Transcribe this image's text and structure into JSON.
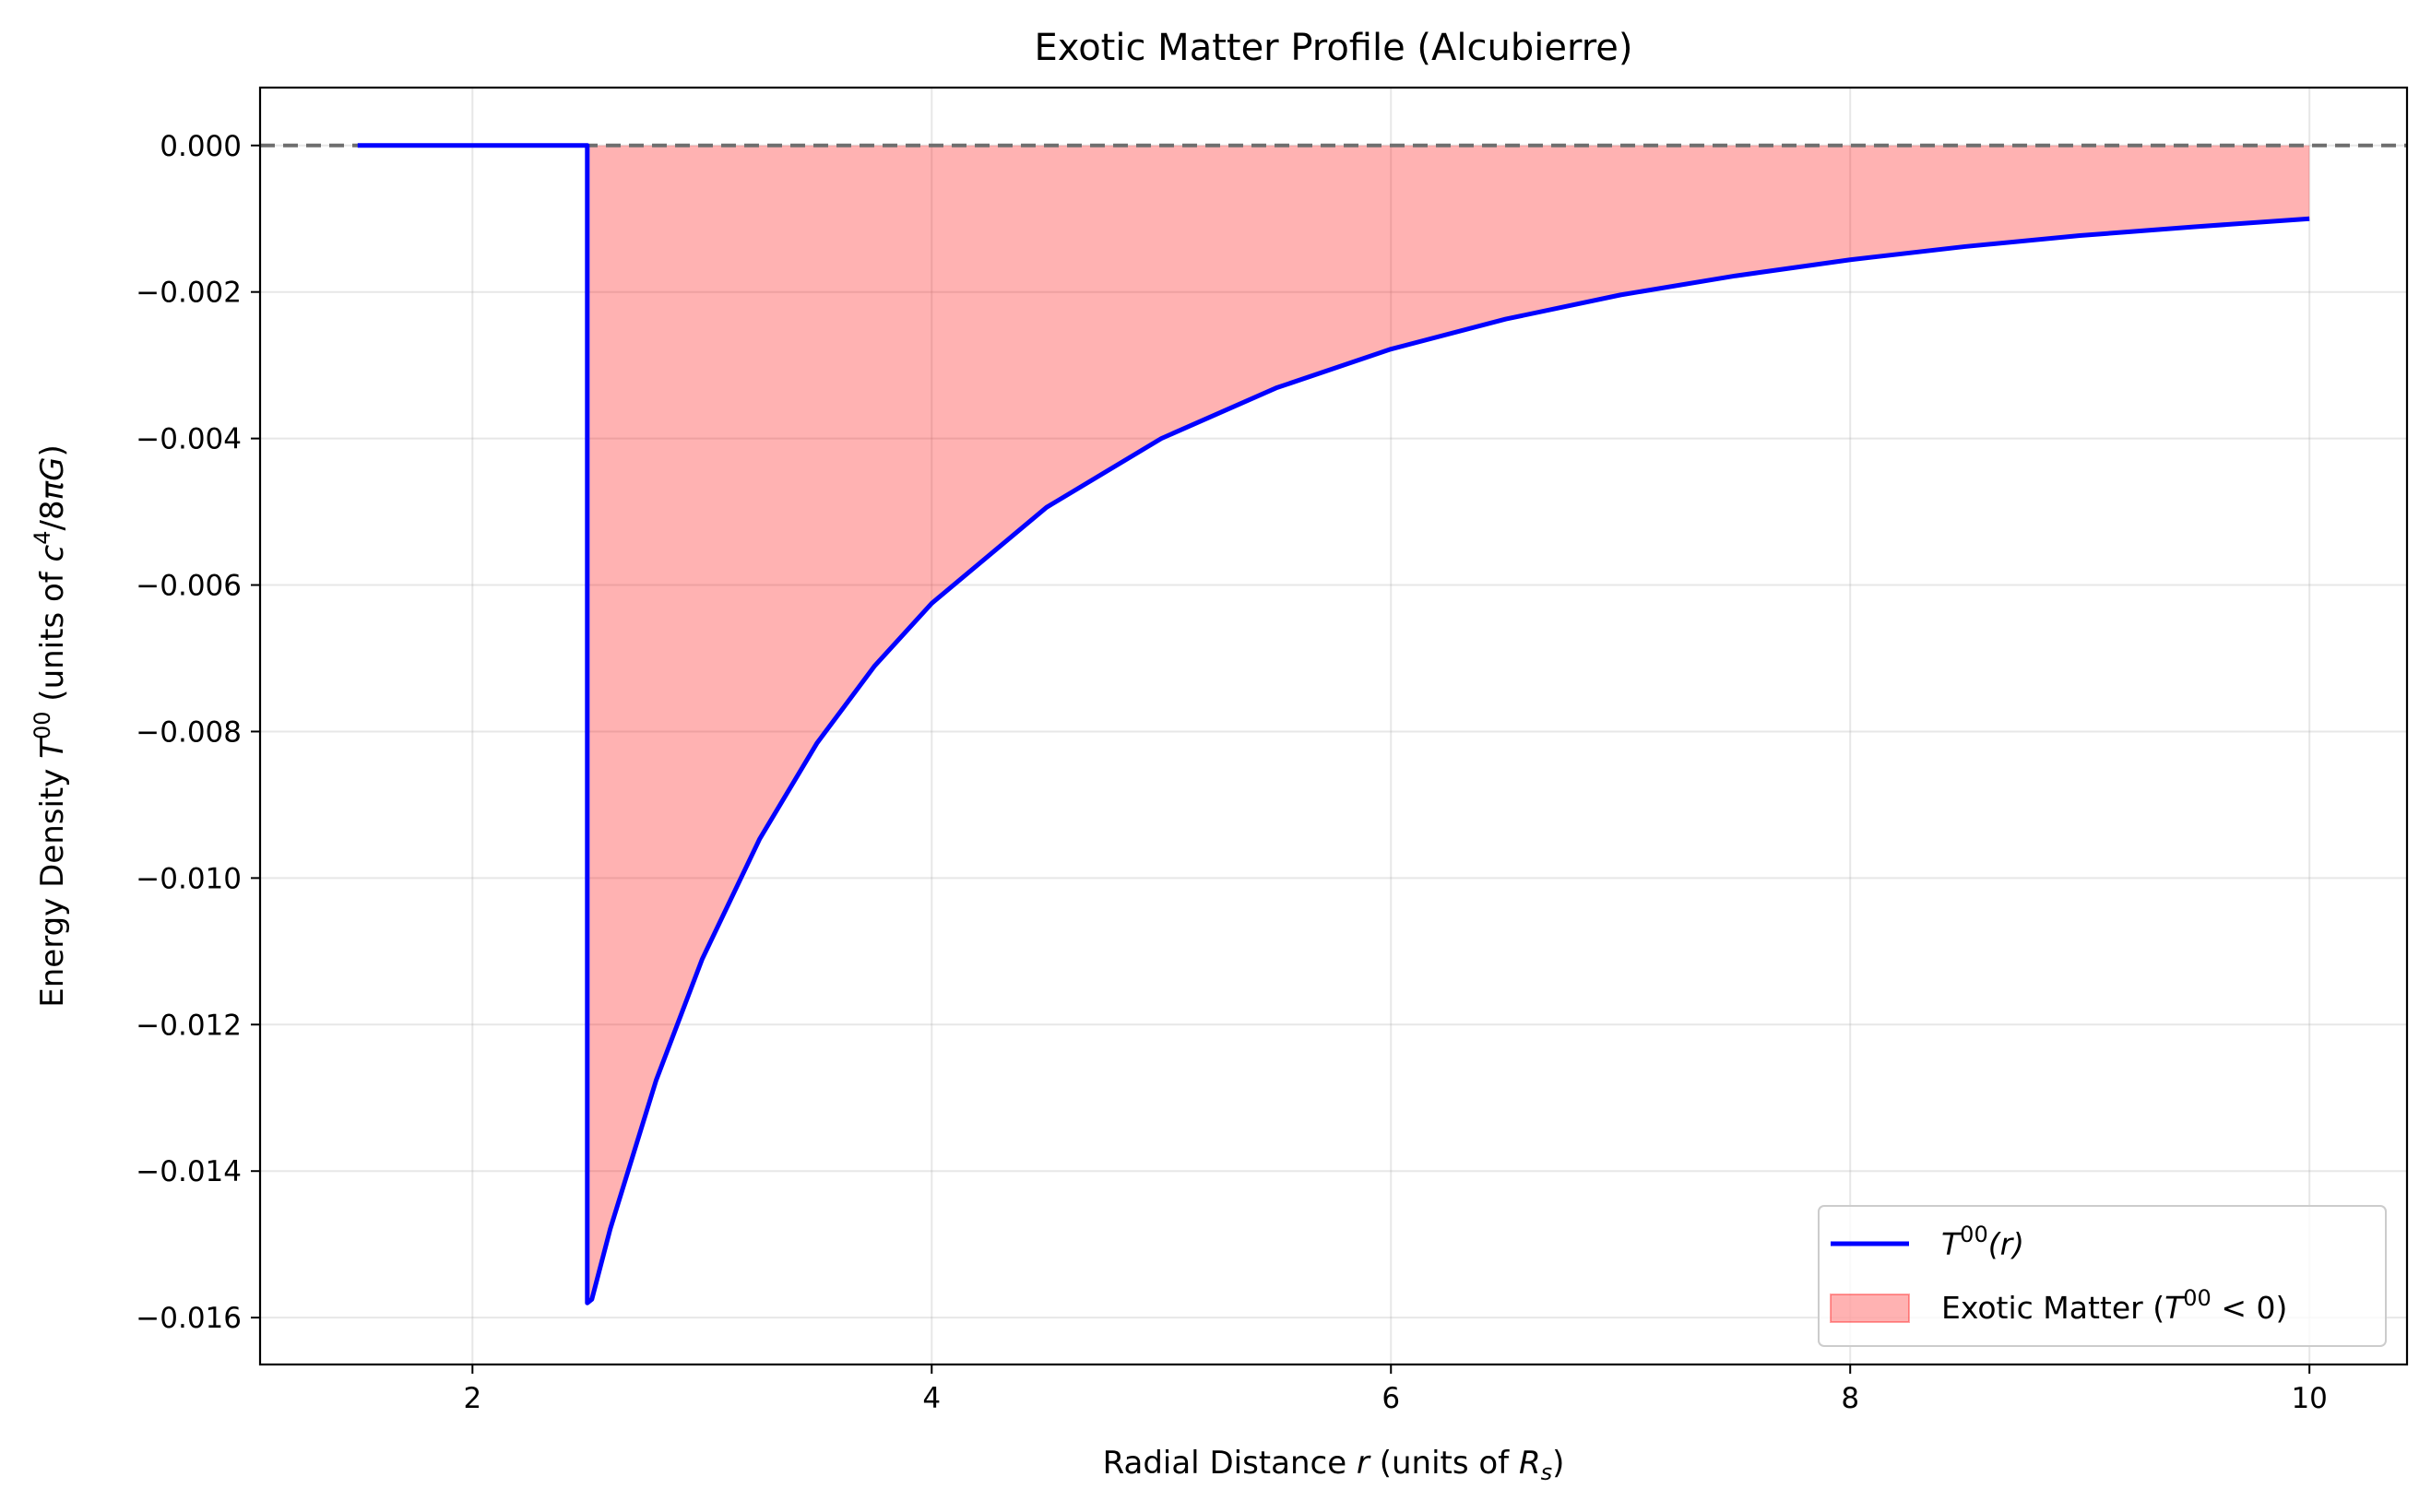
{
  "chart_data": {
    "type": "line",
    "title": "Exotic Matter Profile (Alcubierre)",
    "xlabel": {
      "pre": "Radial Distance ",
      "var": "r",
      "post": " (units of ",
      "sym": "R",
      "sub": "s",
      "end": ")"
    },
    "ylabel": {
      "pre": "Energy Density ",
      "var": "T",
      "sup": "00",
      "mid": " (units of ",
      "c": "c",
      "csup": "4",
      "rest": "/8",
      "pi": "π",
      "G": "G",
      "end": ")"
    },
    "xlim": [
      1.075,
      10.425
    ],
    "ylim": [
      -0.01664,
      0.00079
    ],
    "xticks": [
      2,
      4,
      6,
      8,
      10
    ],
    "xtick_labels": [
      "2",
      "4",
      "6",
      "8",
      "10"
    ],
    "yticks": [
      0.0,
      -0.002,
      -0.004,
      -0.006,
      -0.008,
      -0.01,
      -0.012,
      -0.014,
      -0.016
    ],
    "ytick_labels": [
      "0.000",
      "−0.002",
      "−0.004",
      "−0.006",
      "−0.008",
      "−0.010",
      "−0.012",
      "−0.014",
      "−0.016"
    ],
    "grid": true,
    "reference_line": {
      "y": 0,
      "style": "dashed",
      "color": "#6e6e6e"
    },
    "series": [
      {
        "name": "T00(r)",
        "label": {
          "T": "T",
          "sup": "00",
          "arg": "(r)"
        },
        "color": "#0000ff",
        "x": [
          1.5,
          2.5,
          2.5,
          2.52,
          2.6,
          2.8,
          3.0,
          3.25,
          3.5,
          3.75,
          4.0,
          4.5,
          5.0,
          5.5,
          6.0,
          6.5,
          7.0,
          7.5,
          8.0,
          8.5,
          9.0,
          9.5,
          10.0
        ],
        "y": [
          0.0,
          0.0,
          -0.0158,
          -0.01575,
          -0.01479,
          -0.01276,
          -0.01111,
          -0.00947,
          -0.00816,
          -0.00711,
          -0.00625,
          -0.00494,
          -0.004,
          -0.00331,
          -0.00278,
          -0.00237,
          -0.00204,
          -0.00178,
          -0.00156,
          -0.00138,
          -0.00123,
          -0.00111,
          -0.001
        ]
      }
    ],
    "fill": {
      "name": "Exotic Matter (T00 < 0)",
      "label": {
        "pre": "Exotic Matter (",
        "T": "T",
        "sup": "00",
        "post": " < 0)"
      },
      "color": "#ff0000",
      "alpha": 0.3,
      "between": [
        "series",
        0
      ],
      "x_range": [
        2.5,
        10.0
      ]
    },
    "legend": "lower right"
  }
}
